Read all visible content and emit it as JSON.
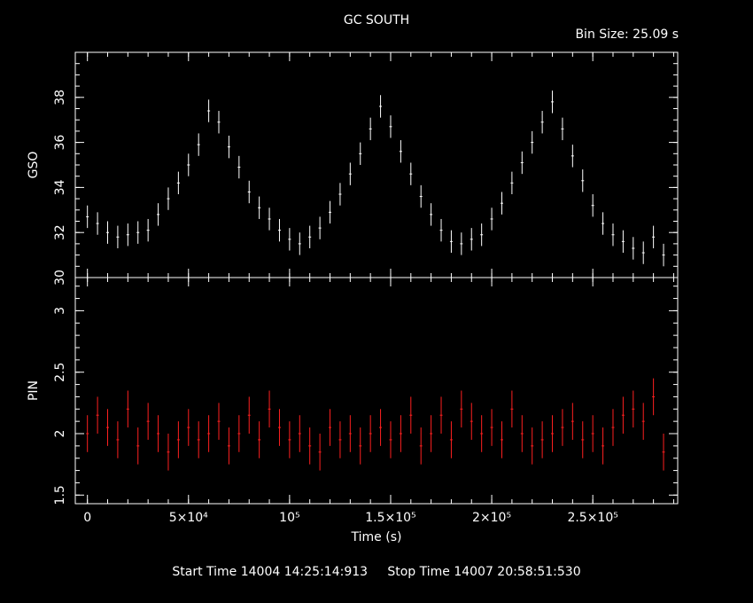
{
  "title": "GC SOUTH",
  "bin_size_label": "Bin Size: 25.09 s",
  "footer": {
    "start_label": "Start Time",
    "start_value": "14004 14:25:14:913",
    "stop_label": "Stop Time",
    "stop_value": "14007 20:58:51:530"
  },
  "colors": {
    "gso": "#ffffff",
    "pin": "#ff2020",
    "axes": "#ffffff",
    "background": "#000000"
  },
  "chart_data": {
    "type": "scatter",
    "title": "GC SOUTH",
    "xlabel": "Time (s)",
    "xlim": [
      -6000,
      292000
    ],
    "x_ticks": [
      {
        "value": 0,
        "label": "0"
      },
      {
        "value": 50000,
        "label": "5×10⁴"
      },
      {
        "value": 100000,
        "label": "10⁵"
      },
      {
        "value": 150000,
        "label": "1.5×10⁵"
      },
      {
        "value": 200000,
        "label": "2×10⁵"
      },
      {
        "value": 250000,
        "label": "2.5×10⁵"
      }
    ],
    "panels": [
      {
        "name": "GSO",
        "ylabel": "GSO",
        "ylim": [
          30,
          40
        ],
        "y_ticks": [
          30,
          32,
          34,
          36,
          38
        ],
        "series": [
          {
            "name": "GSO",
            "error_bars": true,
            "x": [
              0,
              5000,
              10000,
              15000,
              20000,
              25000,
              30000,
              35000,
              40000,
              45000,
              50000,
              55000,
              60000,
              65000,
              70000,
              75000,
              80000,
              85000,
              90000,
              95000,
              100000,
              105000,
              110000,
              115000,
              120000,
              125000,
              130000,
              135000,
              140000,
              145000,
              150000,
              155000,
              160000,
              165000,
              170000,
              175000,
              180000,
              185000,
              190000,
              195000,
              200000,
              205000,
              210000,
              215000,
              220000,
              225000,
              230000,
              235000,
              240000,
              245000,
              250000,
              255000,
              260000,
              265000,
              270000,
              275000,
              280000,
              285000
            ],
            "y": [
              32.7,
              32.4,
              32.0,
              31.8,
              31.9,
              32.0,
              32.1,
              32.8,
              33.5,
              34.2,
              35.0,
              35.9,
              37.4,
              36.9,
              35.8,
              34.9,
              33.8,
              33.1,
              32.6,
              32.1,
              31.7,
              31.5,
              31.8,
              32.2,
              32.9,
              33.7,
              34.6,
              35.5,
              36.6,
              37.6,
              36.7,
              35.6,
              34.6,
              33.6,
              32.8,
              32.1,
              31.6,
              31.5,
              31.7,
              31.9,
              32.6,
              33.3,
              34.2,
              35.1,
              36.0,
              36.9,
              37.8,
              36.6,
              35.4,
              34.3,
              33.2,
              32.4,
              31.9,
              31.6,
              31.3,
              31.1,
              31.8,
              31.0
            ],
            "errors": [
              0.5,
              0.5,
              0.5,
              0.5,
              0.5,
              0.5,
              0.5,
              0.5,
              0.5,
              0.5,
              0.5,
              0.5,
              0.5,
              0.5,
              0.5,
              0.5,
              0.5,
              0.5,
              0.5,
              0.5,
              0.5,
              0.5,
              0.5,
              0.5,
              0.5,
              0.5,
              0.5,
              0.5,
              0.5,
              0.5,
              0.5,
              0.5,
              0.5,
              0.5,
              0.5,
              0.5,
              0.5,
              0.5,
              0.5,
              0.5,
              0.5,
              0.5,
              0.5,
              0.5,
              0.5,
              0.5,
              0.5,
              0.5,
              0.5,
              0.5,
              0.5,
              0.5,
              0.5,
              0.5,
              0.5,
              0.5,
              0.5,
              0.5
            ]
          }
        ]
      },
      {
        "name": "PIN",
        "ylabel": "PIN",
        "ylim": [
          1.43,
          3.27
        ],
        "y_ticks": [
          1.5,
          2,
          2.5,
          3
        ],
        "series": [
          {
            "name": "PIN",
            "error_bars": true,
            "x": [
              0,
              5000,
              10000,
              15000,
              20000,
              25000,
              30000,
              35000,
              40000,
              45000,
              50000,
              55000,
              60000,
              65000,
              70000,
              75000,
              80000,
              85000,
              90000,
              95000,
              100000,
              105000,
              110000,
              115000,
              120000,
              125000,
              130000,
              135000,
              140000,
              145000,
              150000,
              155000,
              160000,
              165000,
              170000,
              175000,
              180000,
              185000,
              190000,
              195000,
              200000,
              205000,
              210000,
              215000,
              220000,
              225000,
              230000,
              235000,
              240000,
              245000,
              250000,
              255000,
              260000,
              265000,
              270000,
              275000,
              280000,
              285000
            ],
            "y": [
              2.0,
              2.15,
              2.05,
              1.95,
              2.2,
              1.9,
              2.1,
              2.0,
              1.85,
              1.95,
              2.05,
              1.95,
              2.0,
              2.1,
              1.9,
              2.0,
              2.15,
              1.95,
              2.2,
              2.05,
              1.95,
              2.0,
              1.9,
              1.85,
              2.05,
              1.95,
              2.0,
              1.9,
              2.0,
              2.05,
              1.95,
              2.0,
              2.15,
              1.9,
              2.0,
              2.15,
              1.95,
              2.2,
              2.1,
              2.0,
              2.05,
              1.95,
              2.2,
              2.0,
              1.9,
              1.95,
              2.0,
              2.05,
              2.1,
              1.95,
              2.0,
              1.9,
              2.05,
              2.15,
              2.2,
              2.1,
              2.3,
              1.85
            ],
            "errors": [
              0.15,
              0.15,
              0.15,
              0.15,
              0.15,
              0.15,
              0.15,
              0.15,
              0.15,
              0.15,
              0.15,
              0.15,
              0.15,
              0.15,
              0.15,
              0.15,
              0.15,
              0.15,
              0.15,
              0.15,
              0.15,
              0.15,
              0.15,
              0.15,
              0.15,
              0.15,
              0.15,
              0.15,
              0.15,
              0.15,
              0.15,
              0.15,
              0.15,
              0.15,
              0.15,
              0.15,
              0.15,
              0.15,
              0.15,
              0.15,
              0.15,
              0.15,
              0.15,
              0.15,
              0.15,
              0.15,
              0.15,
              0.15,
              0.15,
              0.15,
              0.15,
              0.15,
              0.15,
              0.15,
              0.15,
              0.15,
              0.15,
              0.15
            ]
          }
        ]
      }
    ]
  }
}
